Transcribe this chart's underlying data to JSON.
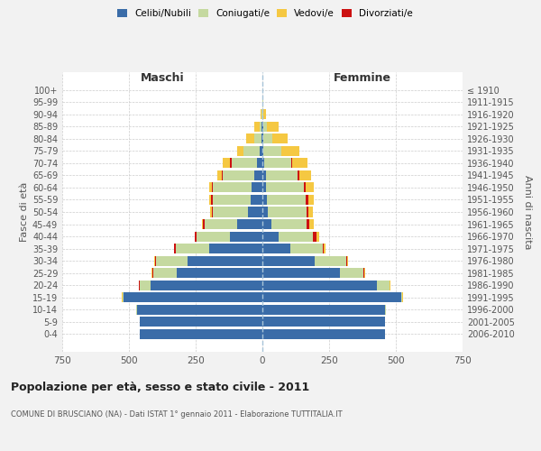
{
  "age_groups": [
    "0-4",
    "5-9",
    "10-14",
    "15-19",
    "20-24",
    "25-29",
    "30-34",
    "35-39",
    "40-44",
    "45-49",
    "50-54",
    "55-59",
    "60-64",
    "65-69",
    "70-74",
    "75-79",
    "80-84",
    "85-89",
    "90-94",
    "95-99",
    "100+"
  ],
  "birth_years": [
    "2006-2010",
    "2001-2005",
    "1996-2000",
    "1991-1995",
    "1986-1990",
    "1981-1985",
    "1976-1980",
    "1971-1975",
    "1966-1970",
    "1961-1965",
    "1956-1960",
    "1951-1955",
    "1946-1950",
    "1941-1945",
    "1936-1940",
    "1931-1935",
    "1926-1930",
    "1921-1925",
    "1916-1920",
    "1911-1915",
    "≤ 1910"
  ],
  "colors": {
    "celibe": "#3a6ca8",
    "coniugato": "#c5d9a0",
    "vedovo": "#f5c842",
    "divorziato": "#cc1111"
  },
  "maschi": {
    "celibe": [
      460,
      460,
      470,
      520,
      420,
      320,
      280,
      200,
      120,
      95,
      55,
      45,
      40,
      30,
      20,
      10,
      5,
      2,
      0,
      0,
      0
    ],
    "coniugato": [
      0,
      0,
      2,
      5,
      40,
      90,
      120,
      125,
      125,
      120,
      130,
      140,
      145,
      120,
      95,
      60,
      25,
      8,
      2,
      0,
      0
    ],
    "vedovo": [
      0,
      0,
      0,
      2,
      2,
      2,
      2,
      2,
      2,
      3,
      5,
      5,
      10,
      15,
      30,
      25,
      30,
      20,
      5,
      0,
      0
    ],
    "divorziato": [
      0,
      0,
      0,
      0,
      2,
      3,
      3,
      5,
      8,
      8,
      5,
      8,
      5,
      3,
      5,
      0,
      0,
      0,
      0,
      0,
      0
    ]
  },
  "femmine": {
    "nubile": [
      460,
      460,
      460,
      520,
      430,
      290,
      195,
      105,
      60,
      35,
      20,
      18,
      15,
      12,
      8,
      5,
      3,
      2,
      0,
      0,
      0
    ],
    "coniugata": [
      0,
      0,
      2,
      5,
      45,
      90,
      120,
      120,
      130,
      130,
      145,
      145,
      140,
      120,
      100,
      65,
      35,
      15,
      5,
      2,
      0
    ],
    "vedova": [
      0,
      0,
      0,
      2,
      2,
      2,
      3,
      5,
      10,
      15,
      15,
      20,
      30,
      45,
      55,
      70,
      55,
      45,
      10,
      2,
      0
    ],
    "divorziata": [
      0,
      0,
      0,
      0,
      2,
      3,
      3,
      5,
      12,
      12,
      8,
      8,
      8,
      5,
      5,
      0,
      0,
      0,
      0,
      0,
      0
    ]
  },
  "title": "Popolazione per età, sesso e stato civile - 2011",
  "subtitle": "COMUNE DI BRUSCIANO (NA) - Dati ISTAT 1° gennaio 2011 - Elaborazione TUTTITALIA.IT",
  "xlabel_left": "Maschi",
  "xlabel_right": "Femmine",
  "ylabel_left": "Fasce di età",
  "ylabel_right": "Anni di nascita",
  "xlim": 750,
  "legend_labels": [
    "Celibi/Nubili",
    "Coniugati/e",
    "Vedovi/e",
    "Divorziati/e"
  ],
  "bg_color": "#f2f2f2",
  "plot_bg_color": "#ffffff",
  "grid_color": "#cccccc"
}
